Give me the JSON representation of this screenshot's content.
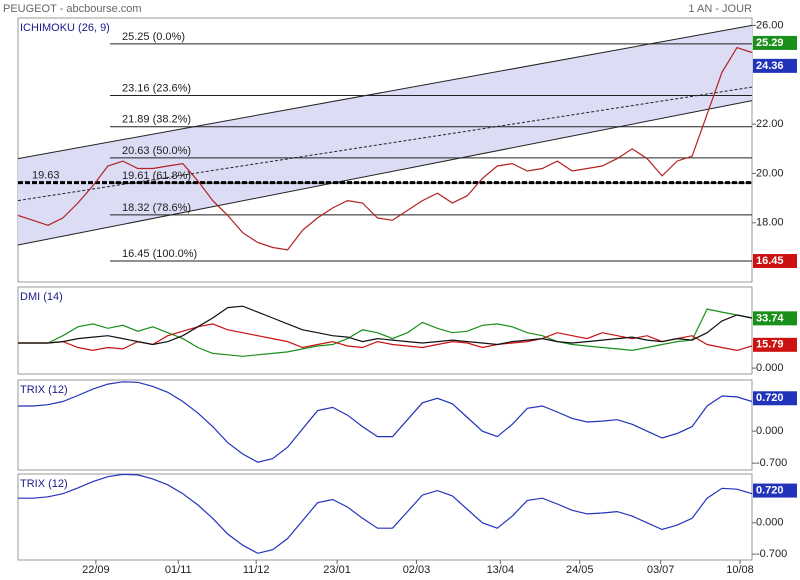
{
  "header": {
    "title": "PEUGEOT - abcbourse.com",
    "period": "1 AN - JOUR"
  },
  "chart_data": [
    {
      "type": "line",
      "title": "ICHIMOKU (26, 9)",
      "x": [
        0,
        1,
        2,
        3,
        4,
        5,
        6,
        7,
        8,
        9,
        10,
        11,
        12,
        13,
        14,
        15,
        16,
        17,
        18,
        19,
        20,
        21,
        22,
        23,
        24,
        25,
        26,
        27,
        28,
        29,
        30,
        31,
        32,
        33,
        34,
        35,
        36,
        37,
        38,
        39,
        40,
        41,
        42,
        43,
        44,
        45,
        46,
        47,
        48,
        49
      ],
      "xlim": [
        0,
        49
      ],
      "xticks": [
        {
          "value": 5.2,
          "label": "22/09"
        },
        {
          "value": 10.7,
          "label": "01/11"
        },
        {
          "value": 15.9,
          "label": "11/12"
        },
        {
          "value": 21.3,
          "label": "23/01"
        },
        {
          "value": 26.6,
          "label": "02/03"
        },
        {
          "value": 32.2,
          "label": "13/04"
        },
        {
          "value": 37.5,
          "label": "24/05"
        },
        {
          "value": 42.9,
          "label": "03/07"
        },
        {
          "value": 48.2,
          "label": "10/08"
        }
      ],
      "ylim": [
        15.6,
        26.3
      ],
      "yticks": [
        {
          "value": 26,
          "label": "26.00"
        },
        {
          "value": 22,
          "label": "22.00"
        },
        {
          "value": 20,
          "label": "20.00"
        },
        {
          "value": 18,
          "label": "18.00"
        }
      ],
      "series": [
        {
          "color": "#b22222",
          "values": [
            18.3,
            18.1,
            17.9,
            18.2,
            18.8,
            19.5,
            20.3,
            20.5,
            20.2,
            20.2,
            20.3,
            20.4,
            19.7,
            18.9,
            18.3,
            17.6,
            17.2,
            17.0,
            16.9,
            17.7,
            18.2,
            18.6,
            18.9,
            18.8,
            18.2,
            18.1,
            18.5,
            18.9,
            19.2,
            18.8,
            19.1,
            19.8,
            20.3,
            20.4,
            20.1,
            20.2,
            20.5,
            20.1,
            20.2,
            20.3,
            20.6,
            21.0,
            20.6,
            19.9,
            20.5,
            20.7,
            22.4,
            24.1,
            25.1,
            24.9
          ]
        }
      ],
      "trend_lines": [
        [
          20.6,
          26.0
        ],
        [
          18.9,
          23.5
        ],
        [
          17.1,
          22.95
        ]
      ],
      "levels": [
        {
          "value": 25.25,
          "label": "25.25  (0.0%)"
        },
        {
          "value": 23.16,
          "label": "23.16  (23.6%)"
        },
        {
          "value": 21.89,
          "label": "21.89  (38.2%)"
        },
        {
          "value": 20.63,
          "label": "20.63  (50.0%)"
        },
        {
          "value": 19.61,
          "label": "19.61  (61.8%)"
        },
        {
          "value": 18.32,
          "label": "18.32  (78.6%)"
        },
        {
          "value": 16.45,
          "label": "16.45  (100.0%)"
        }
      ],
      "support": {
        "value": 19.63,
        "label": "19.63"
      },
      "badges": [
        {
          "value": 25.29,
          "label": "25.29",
          "color": "#1a8f1a"
        },
        {
          "value": 24.36,
          "label": "24.36",
          "color": "#2233bb"
        },
        {
          "value": 16.45,
          "label": "16.45",
          "color": "#cc1111"
        }
      ]
    },
    {
      "type": "line",
      "title": "DMI (14)",
      "x": [
        0,
        1,
        2,
        3,
        4,
        5,
        6,
        7,
        8,
        9,
        10,
        11,
        12,
        13,
        14,
        15,
        16,
        17,
        18,
        19,
        20,
        21,
        22,
        23,
        24,
        25,
        26,
        27,
        28,
        29,
        30,
        31,
        32,
        33,
        34,
        35,
        36,
        37,
        38,
        39,
        40,
        41,
        42,
        43,
        44,
        45,
        46,
        47,
        48,
        49
      ],
      "xlim": [
        0,
        49
      ],
      "ylim": [
        -4,
        55
      ],
      "yticks": [
        {
          "value": 0,
          "label": "0.000"
        }
      ],
      "series": [
        {
          "color": "#1a8f1a",
          "values": [
            17,
            17,
            17,
            22,
            28,
            30,
            27,
            29,
            25,
            28,
            24,
            20,
            14,
            10,
            9,
            8,
            9,
            10,
            11,
            13,
            15,
            16,
            20,
            26,
            24,
            20,
            24,
            31,
            27,
            24,
            25,
            29,
            30,
            28,
            24,
            22,
            18,
            16,
            15,
            14,
            13,
            12,
            14,
            16,
            18,
            19,
            40,
            38,
            36,
            34
          ]
        },
        {
          "color": "#cc1111",
          "values": [
            17,
            17,
            17,
            18,
            14,
            12,
            14,
            13,
            18,
            16,
            22,
            25,
            28,
            30,
            26,
            24,
            22,
            20,
            18,
            14,
            16,
            18,
            15,
            14,
            18,
            16,
            15,
            14,
            16,
            18,
            17,
            14,
            16,
            17,
            18,
            20,
            24,
            22,
            20,
            24,
            22,
            20,
            22,
            18,
            20,
            22,
            16,
            14,
            12,
            15
          ]
        },
        {
          "color": "#111111",
          "values": [
            17,
            17,
            17,
            18,
            20,
            21,
            22,
            20,
            18,
            16,
            18,
            22,
            28,
            34,
            41,
            42,
            38,
            34,
            30,
            26,
            24,
            22,
            21,
            18,
            20,
            19,
            18,
            17,
            18,
            19,
            18,
            17,
            16,
            18,
            19,
            20,
            18,
            17,
            18,
            19,
            20,
            21,
            19,
            18,
            20,
            19,
            24,
            32,
            36,
            34
          ]
        }
      ],
      "badges": [
        {
          "value": 33.74,
          "label": "33.74",
          "color": "#1a8f1a"
        },
        {
          "value": 15.79,
          "label": "15.79",
          "color": "#cc1111"
        }
      ]
    },
    {
      "type": "line",
      "title": "TRIX (12)",
      "x": [
        0,
        1,
        2,
        3,
        4,
        5,
        6,
        7,
        8,
        9,
        10,
        11,
        12,
        13,
        14,
        15,
        16,
        17,
        18,
        19,
        20,
        21,
        22,
        23,
        24,
        25,
        26,
        27,
        28,
        29,
        30,
        31,
        32,
        33,
        34,
        35,
        36,
        37,
        38,
        39,
        40,
        41,
        42,
        43,
        44,
        45,
        46,
        47,
        48,
        49
      ],
      "xlim": [
        0,
        49
      ],
      "ylim": [
        -0.85,
        1.12
      ],
      "yticks": [
        {
          "value": 0,
          "label": "0.000"
        },
        {
          "value": -0.7,
          "label": "-0.700"
        }
      ],
      "series": [
        {
          "color": "#2233bb",
          "values": [
            0.55,
            0.55,
            0.58,
            0.65,
            0.78,
            0.92,
            1.03,
            1.08,
            1.07,
            0.98,
            0.85,
            0.65,
            0.4,
            0.1,
            -0.25,
            -0.5,
            -0.68,
            -0.6,
            -0.35,
            0.05,
            0.45,
            0.52,
            0.35,
            0.1,
            -0.12,
            -0.12,
            0.25,
            0.62,
            0.72,
            0.6,
            0.3,
            0,
            -0.12,
            0.15,
            0.5,
            0.55,
            0.42,
            0.28,
            0.2,
            0.22,
            0.25,
            0.15,
            0,
            -0.15,
            -0.05,
            0.1,
            0.55,
            0.77,
            0.75,
            0.65
          ]
        }
      ],
      "badges": [
        {
          "value": 0.72,
          "label": "0.720",
          "color": "#2233bb"
        }
      ]
    },
    {
      "type": "line",
      "title": "TRIX (12)",
      "x": [
        0,
        1,
        2,
        3,
        4,
        5,
        6,
        7,
        8,
        9,
        10,
        11,
        12,
        13,
        14,
        15,
        16,
        17,
        18,
        19,
        20,
        21,
        22,
        23,
        24,
        25,
        26,
        27,
        28,
        29,
        30,
        31,
        32,
        33,
        34,
        35,
        36,
        37,
        38,
        39,
        40,
        41,
        42,
        43,
        44,
        45,
        46,
        47,
        48,
        49
      ],
      "xlim": [
        0,
        49
      ],
      "ylim": [
        -0.83,
        1.09
      ],
      "yticks": [
        {
          "value": 0,
          "label": "0.000"
        },
        {
          "value": -0.7,
          "label": "-0.700"
        }
      ],
      "series": [
        {
          "color": "#2233bb",
          "values": [
            0.55,
            0.55,
            0.58,
            0.65,
            0.78,
            0.92,
            1.03,
            1.08,
            1.07,
            0.98,
            0.85,
            0.65,
            0.4,
            0.1,
            -0.25,
            -0.5,
            -0.68,
            -0.6,
            -0.35,
            0.05,
            0.45,
            0.52,
            0.35,
            0.1,
            -0.12,
            -0.12,
            0.25,
            0.62,
            0.72,
            0.6,
            0.3,
            0,
            -0.12,
            0.15,
            0.5,
            0.55,
            0.42,
            0.28,
            0.2,
            0.22,
            0.25,
            0.15,
            0,
            -0.15,
            -0.05,
            0.1,
            0.55,
            0.77,
            0.75,
            0.65
          ]
        }
      ],
      "badges": [
        {
          "value": 0.72,
          "label": "0.720",
          "color": "#2233bb"
        }
      ]
    }
  ]
}
